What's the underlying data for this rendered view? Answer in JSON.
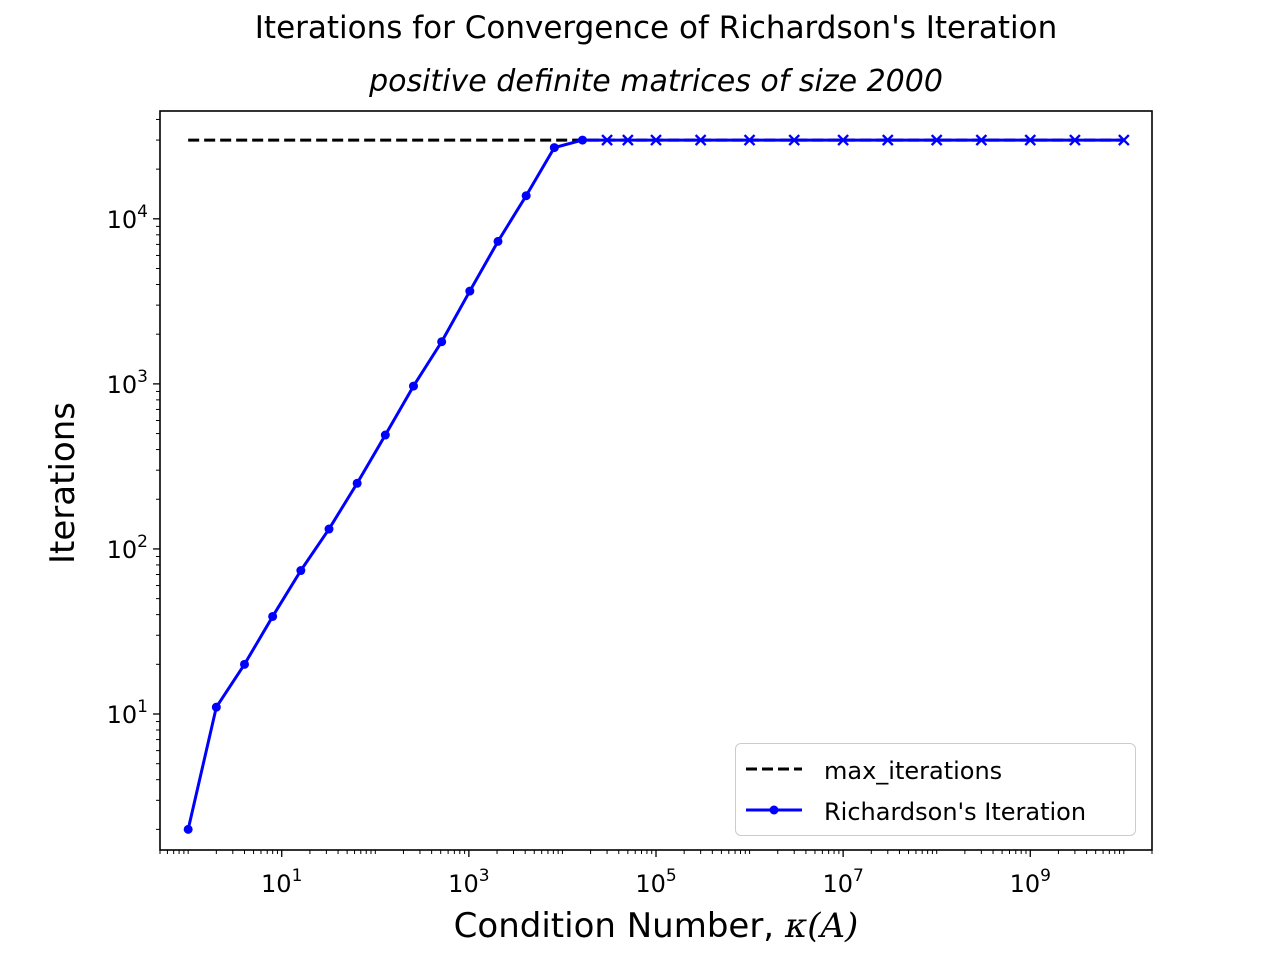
{
  "chart_data": {
    "type": "line",
    "title": "Iterations for Convergence of Richardson's Iteration",
    "subtitle": "positive definite matrices of size 2000",
    "xlabel": "Condition Number, κ(A)",
    "ylabel": "Iterations",
    "xscale": "log",
    "yscale": "log",
    "xlim": [
      0.5,
      20000000000
    ],
    "ylim": [
      1.5,
      45000
    ],
    "x_tick_labels": [
      "10^1",
      "10^3",
      "10^5",
      "10^7",
      "10^9"
    ],
    "y_tick_labels": [
      "10^1",
      "10^2",
      "10^3",
      "10^4"
    ],
    "legend_position": "lower-right",
    "grid": false,
    "series": [
      {
        "name": "max_iterations",
        "color": "#000000",
        "style": "dashed",
        "x": [
          1,
          10000000000
        ],
        "y": [
          30000,
          30000
        ]
      },
      {
        "name": "Richardson's Iteration",
        "color": "#0000ff",
        "style": "solid",
        "marker": "point",
        "x": [
          1,
          2,
          4,
          8,
          16,
          32,
          64,
          128,
          256,
          512,
          1024,
          2048,
          4096,
          8192,
          16384
        ],
        "y": [
          2,
          11,
          20,
          39,
          74,
          132,
          250,
          490,
          970,
          1800,
          3650,
          7300,
          13800,
          27000,
          30000
        ]
      },
      {
        "name": "",
        "color": "#0000ff",
        "style": "solid",
        "marker": "x",
        "x": [
          30000,
          50000,
          100000,
          300000,
          1000000,
          3000000,
          10000000,
          30000000,
          100000000,
          300000000,
          1000000000,
          3000000000,
          10000000000
        ],
        "y": [
          30000,
          30000,
          30000,
          30000,
          30000,
          30000,
          30000,
          30000,
          30000,
          30000,
          30000,
          30000,
          30000
        ]
      }
    ]
  }
}
